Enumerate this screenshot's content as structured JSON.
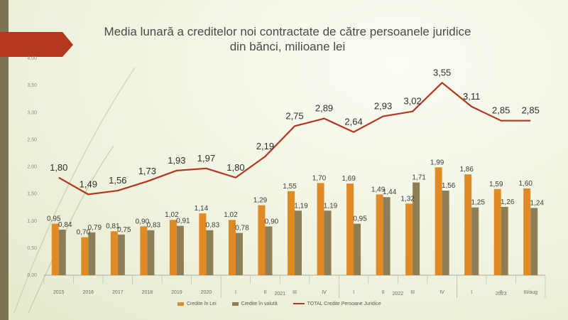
{
  "title_line1": "Media lunară a creditelor noi contractate de către persoanele juridice",
  "title_line2": "din bănci, milioane lei",
  "colors": {
    "lei": "#e08a25",
    "valuta": "#8e7e55",
    "total": "#b3361f",
    "banner": "#b3361f",
    "bar": "#7b7354"
  },
  "chart_data": {
    "type": "bar",
    "categories": [
      "2015",
      "2016",
      "2017",
      "2018",
      "2019",
      "2020",
      "I",
      "II",
      "III",
      "IV",
      "I",
      "II",
      "III",
      "IV",
      "I",
      "II",
      "III/aug"
    ],
    "group_labels": [
      {
        "label": "2021",
        "from": 6,
        "to": 9
      },
      {
        "label": "2022",
        "from": 10,
        "to": 13
      },
      {
        "label": "2023",
        "from": 14,
        "to": 16
      }
    ],
    "ylim": [
      0,
      4
    ],
    "yticks": [
      "0,00",
      "0,50",
      "1,00",
      "1,50",
      "2,00",
      "2,50",
      "3,00",
      "3,50",
      "4,00"
    ],
    "series": [
      {
        "name": "Credite în Lei",
        "type": "bar",
        "values": [
          0.95,
          0.7,
          0.81,
          0.9,
          1.02,
          1.14,
          1.02,
          1.29,
          1.55,
          1.7,
          1.69,
          1.49,
          1.32,
          1.99,
          1.86,
          1.59,
          1.6
        ],
        "labels": [
          "0,95",
          "0,70",
          "0,81",
          "0,90",
          "1,02",
          "1,14",
          "1,02",
          "1,29",
          "1,55",
          "1,70",
          "1,69",
          "1,49",
          "1,32",
          "1,99",
          "1,86",
          "1,59",
          "1,60"
        ]
      },
      {
        "name": "Credite în valută",
        "type": "bar",
        "values": [
          0.84,
          0.79,
          0.75,
          0.83,
          0.91,
          0.83,
          0.78,
          0.9,
          1.19,
          1.19,
          0.95,
          1.44,
          1.71,
          1.56,
          1.25,
          1.26,
          1.24
        ],
        "labels": [
          "0,84",
          "0,79",
          "0,75",
          "0,83",
          "0,91",
          "0,83",
          "0,78",
          "0,90",
          "1,19",
          "1,19",
          "0,95",
          "1,44",
          "1,71",
          "1,56",
          "1,25",
          "1,26",
          "1,24"
        ]
      },
      {
        "name": "TOTAL Credite Persoane Juridice",
        "type": "line",
        "values": [
          1.8,
          1.49,
          1.56,
          1.73,
          1.93,
          1.97,
          1.8,
          2.19,
          2.75,
          2.89,
          2.64,
          2.93,
          3.02,
          3.55,
          3.11,
          2.85,
          2.85
        ],
        "labels": [
          "1,80",
          "1,49",
          "1,56",
          "1,73",
          "1,93",
          "1,97",
          "1,80",
          "2,19",
          "2,75",
          "2,89",
          "2,64",
          "2,93",
          "3,02",
          "3,55",
          "3,11",
          "2,85",
          "2,85"
        ]
      }
    ],
    "legend_position": "bottom",
    "grid": false
  }
}
